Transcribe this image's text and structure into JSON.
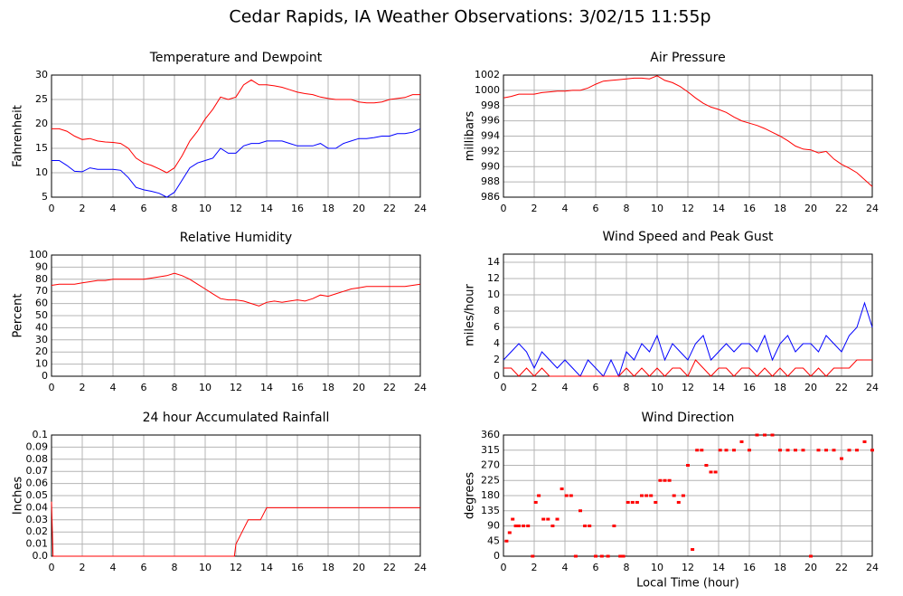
{
  "title": "Cedar Rapids, IA Weather Observations: 3/02/15 11:55p",
  "chart_data": [
    {
      "type": "line",
      "title": "Temperature and Dewpoint",
      "ylabel": "Fahrenheit",
      "xlim": [
        0,
        24
      ],
      "xticks": [
        0,
        2,
        4,
        6,
        8,
        10,
        12,
        14,
        16,
        18,
        20,
        22,
        24
      ],
      "ylim": [
        5,
        30
      ],
      "yticks": [
        5,
        10,
        15,
        20,
        25,
        30
      ],
      "grid": true,
      "x": [
        0,
        0.5,
        1,
        1.5,
        2,
        2.5,
        3,
        3.5,
        4,
        4.5,
        5,
        5.5,
        6,
        6.5,
        7,
        7.5,
        8,
        8.5,
        9,
        9.5,
        10,
        10.5,
        11,
        11.5,
        12,
        12.5,
        13,
        13.5,
        14,
        14.5,
        15,
        15.5,
        16,
        16.5,
        17,
        17.5,
        18,
        18.5,
        19,
        19.5,
        20,
        20.5,
        21,
        21.5,
        22,
        22.5,
        23,
        23.5,
        24
      ],
      "series": [
        {
          "color": "#ff0000",
          "values": [
            19,
            19,
            18.5,
            17.5,
            16.8,
            17,
            16.5,
            16.3,
            16.2,
            16,
            15,
            13,
            12,
            11.5,
            10.8,
            10,
            11,
            13.5,
            16.5,
            18.5,
            21,
            23,
            25.5,
            25,
            25.5,
            28,
            29,
            28,
            28,
            27.8,
            27.5,
            27,
            26.5,
            26.2,
            26,
            25.5,
            25.2,
            25,
            25,
            25,
            24.5,
            24.3,
            24.3,
            24.5,
            25,
            25.2,
            25.4,
            26,
            26
          ]
        },
        {
          "color": "#0000ff",
          "values": [
            12.5,
            12.5,
            11.5,
            10.3,
            10.2,
            11,
            10.7,
            10.7,
            10.7,
            10.5,
            9,
            7,
            6.5,
            6.2,
            5.8,
            5,
            6,
            8.5,
            11,
            12,
            12.5,
            13,
            15,
            14,
            14,
            15.5,
            16,
            16,
            16.5,
            16.5,
            16.5,
            16,
            15.5,
            15.5,
            15.5,
            16,
            15,
            15,
            16,
            16.5,
            17,
            17,
            17.2,
            17.5,
            17.5,
            18,
            18,
            18.3,
            19
          ]
        }
      ]
    },
    {
      "type": "line",
      "title": "Air Pressure",
      "ylabel": "millibars",
      "xlim": [
        0,
        24
      ],
      "xticks": [
        0,
        2,
        4,
        6,
        8,
        10,
        12,
        14,
        16,
        18,
        20,
        22,
        24
      ],
      "ylim": [
        986,
        1002
      ],
      "yticks": [
        986,
        988,
        990,
        992,
        994,
        996,
        998,
        1000,
        1002
      ],
      "grid": true,
      "x": [
        0,
        0.5,
        1,
        1.5,
        2,
        2.5,
        3,
        3.5,
        4,
        4.5,
        5,
        5.5,
        6,
        6.5,
        7,
        7.5,
        8,
        8.5,
        9,
        9.5,
        10,
        10.5,
        11,
        11.5,
        12,
        12.5,
        13,
        13.5,
        14,
        14.5,
        15,
        15.5,
        16,
        16.5,
        17,
        17.5,
        18,
        18.5,
        19,
        19.5,
        20,
        20.5,
        21,
        21.5,
        22,
        22.5,
        23,
        23.5,
        24
      ],
      "series": [
        {
          "color": "#ff0000",
          "values": [
            999,
            999.2,
            999.5,
            999.5,
            999.5,
            999.7,
            999.8,
            999.9,
            999.9,
            1000,
            1000,
            1000.3,
            1000.8,
            1001.2,
            1001.3,
            1001.4,
            1001.5,
            1001.6,
            1001.6,
            1001.5,
            1001.9,
            1001.3,
            1001,
            1000.5,
            999.8,
            999,
            998.3,
            997.8,
            997.5,
            997.1,
            996.5,
            996,
            995.7,
            995.4,
            995,
            994.5,
            994,
            993.4,
            992.7,
            992.3,
            992.2,
            991.8,
            992,
            991,
            990.3,
            989.8,
            989.2,
            988.3,
            987.4
          ]
        }
      ]
    },
    {
      "type": "line",
      "title": "Relative Humidity",
      "ylabel": "Percent",
      "xlim": [
        0,
        24
      ],
      "xticks": [
        0,
        2,
        4,
        6,
        8,
        10,
        12,
        14,
        16,
        18,
        20,
        22,
        24
      ],
      "ylim": [
        0,
        100
      ],
      "yticks": [
        0,
        10,
        20,
        30,
        40,
        50,
        60,
        70,
        80,
        90,
        100
      ],
      "grid": true,
      "x": [
        0,
        0.5,
        1,
        1.5,
        2,
        2.5,
        3,
        3.5,
        4,
        4.5,
        5,
        5.5,
        6,
        6.5,
        7,
        7.5,
        8,
        8.5,
        9,
        9.5,
        10,
        10.5,
        11,
        11.5,
        12,
        12.5,
        13,
        13.5,
        14,
        14.5,
        15,
        15.5,
        16,
        16.5,
        17,
        17.5,
        18,
        18.5,
        19,
        19.5,
        20,
        20.5,
        21,
        21.5,
        22,
        22.5,
        23,
        23.5,
        24
      ],
      "series": [
        {
          "color": "#ff0000",
          "values": [
            75,
            76,
            76,
            76,
            77,
            78,
            79,
            79,
            80,
            80,
            80,
            80,
            80,
            81,
            82,
            83,
            85,
            83,
            80,
            76,
            72,
            68,
            64,
            63,
            63,
            62,
            60,
            58,
            61,
            62,
            61,
            62,
            63,
            62,
            64,
            67,
            66,
            68,
            70,
            72,
            73,
            74,
            74,
            74,
            74,
            74,
            74,
            75,
            76
          ]
        }
      ]
    },
    {
      "type": "line",
      "title": "Wind Speed and Peak Gust",
      "ylabel": "miles/hour",
      "xlim": [
        0,
        24
      ],
      "xticks": [
        0,
        2,
        4,
        6,
        8,
        10,
        12,
        14,
        16,
        18,
        20,
        22,
        24
      ],
      "ylim": [
        0,
        15
      ],
      "yticks": [
        0,
        2,
        4,
        6,
        8,
        10,
        12,
        14
      ],
      "grid": true,
      "x": [
        0,
        0.5,
        1,
        1.5,
        2,
        2.5,
        3,
        3.5,
        4,
        4.5,
        5,
        5.5,
        6,
        6.5,
        7,
        7.5,
        8,
        8.5,
        9,
        9.5,
        10,
        10.5,
        11,
        11.5,
        12,
        12.5,
        13,
        13.5,
        14,
        14.5,
        15,
        15.5,
        16,
        16.5,
        17,
        17.5,
        18,
        18.5,
        19,
        19.5,
        20,
        20.5,
        21,
        21.5,
        22,
        22.5,
        23,
        23.5,
        24
      ],
      "series": [
        {
          "color": "#0000ff",
          "values": [
            2,
            3,
            4,
            3,
            1,
            3,
            2,
            1,
            2,
            1,
            0,
            2,
            1,
            0,
            2,
            0,
            3,
            2,
            4,
            3,
            5,
            2,
            4,
            3,
            2,
            4,
            5,
            2,
            3,
            4,
            3,
            4,
            4,
            3,
            5,
            2,
            4,
            5,
            3,
            4,
            4,
            3,
            5,
            4,
            3,
            5,
            6,
            9,
            6
          ]
        },
        {
          "color": "#ff0000",
          "values": [
            1,
            1,
            0,
            1,
            0,
            1,
            0,
            0,
            0,
            0,
            0,
            0,
            0,
            0,
            0,
            0,
            1,
            0,
            1,
            0,
            1,
            0,
            1,
            1,
            0,
            2,
            1,
            0,
            1,
            1,
            0,
            1,
            1,
            0,
            1,
            0,
            1,
            0,
            1,
            1,
            0,
            1,
            0,
            1,
            1,
            1,
            2,
            2,
            2
          ]
        }
      ]
    },
    {
      "type": "line",
      "title": "24 hour Accumulated Rainfall",
      "ylabel": "Inches",
      "xlim": [
        0,
        24
      ],
      "xticks": [
        0,
        2,
        4,
        6,
        8,
        10,
        12,
        14,
        16,
        18,
        20,
        22,
        24
      ],
      "ylim": [
        0,
        0.1
      ],
      "yticks": [
        {
          "value": 0,
          "label": "0.0"
        },
        0.01,
        0.02,
        0.03,
        0.04,
        0.05,
        0.06,
        0.07,
        0.08,
        0.09,
        0.1
      ],
      "grid": true,
      "x": [
        0,
        0.1,
        11.9,
        12,
        12.4,
        12.8,
        13.6,
        14,
        24
      ],
      "series": [
        {
          "color": "#ff0000",
          "values": [
            0.045,
            0,
            0,
            0.01,
            0.02,
            0.03,
            0.03,
            0.04,
            0.04
          ]
        }
      ]
    },
    {
      "type": "scatter",
      "title": "Wind Direction",
      "ylabel": "degrees",
      "xlabel": "Local Time (hour)",
      "xlim": [
        0,
        24
      ],
      "xticks": [
        0,
        2,
        4,
        6,
        8,
        10,
        12,
        14,
        16,
        18,
        20,
        22,
        24
      ],
      "ylim": [
        0,
        360
      ],
      "yticks": [
        0,
        45,
        90,
        135,
        180,
        225,
        270,
        315,
        360
      ],
      "grid": true,
      "x": [
        0.2,
        0.4,
        0.6,
        0.8,
        1,
        1.3,
        1.6,
        1.9,
        2.1,
        2.3,
        2.6,
        2.9,
        3.2,
        3.5,
        3.8,
        4.1,
        4.4,
        4.7,
        5,
        5.3,
        5.6,
        6,
        6.4,
        6.8,
        7.2,
        7.6,
        7.8,
        8.1,
        8.4,
        8.7,
        9,
        9.3,
        9.6,
        9.9,
        10.2,
        10.5,
        10.8,
        11.1,
        11.4,
        11.7,
        12,
        12.3,
        12.6,
        12.9,
        13.2,
        13.5,
        13.8,
        14.1,
        14.5,
        15,
        15.5,
        16,
        16.5,
        17,
        17.5,
        18,
        18.5,
        19,
        19.5,
        20,
        20.5,
        21,
        21.5,
        22,
        22.5,
        23,
        23.5,
        24
      ],
      "series": [
        {
          "color": "#ff0000",
          "values": [
            45,
            70,
            110,
            90,
            90,
            90,
            90,
            0,
            160,
            180,
            110,
            110,
            90,
            110,
            200,
            180,
            180,
            0,
            135,
            90,
            90,
            0,
            0,
            0,
            90,
            0,
            0,
            160,
            160,
            160,
            180,
            180,
            180,
            160,
            225,
            225,
            225,
            180,
            160,
            180,
            270,
            20,
            315,
            315,
            270,
            250,
            250,
            315,
            315,
            315,
            340,
            315,
            360,
            360,
            360,
            315,
            315,
            315,
            315,
            0,
            315,
            315,
            315,
            290,
            315,
            315,
            340,
            315
          ]
        }
      ]
    }
  ]
}
